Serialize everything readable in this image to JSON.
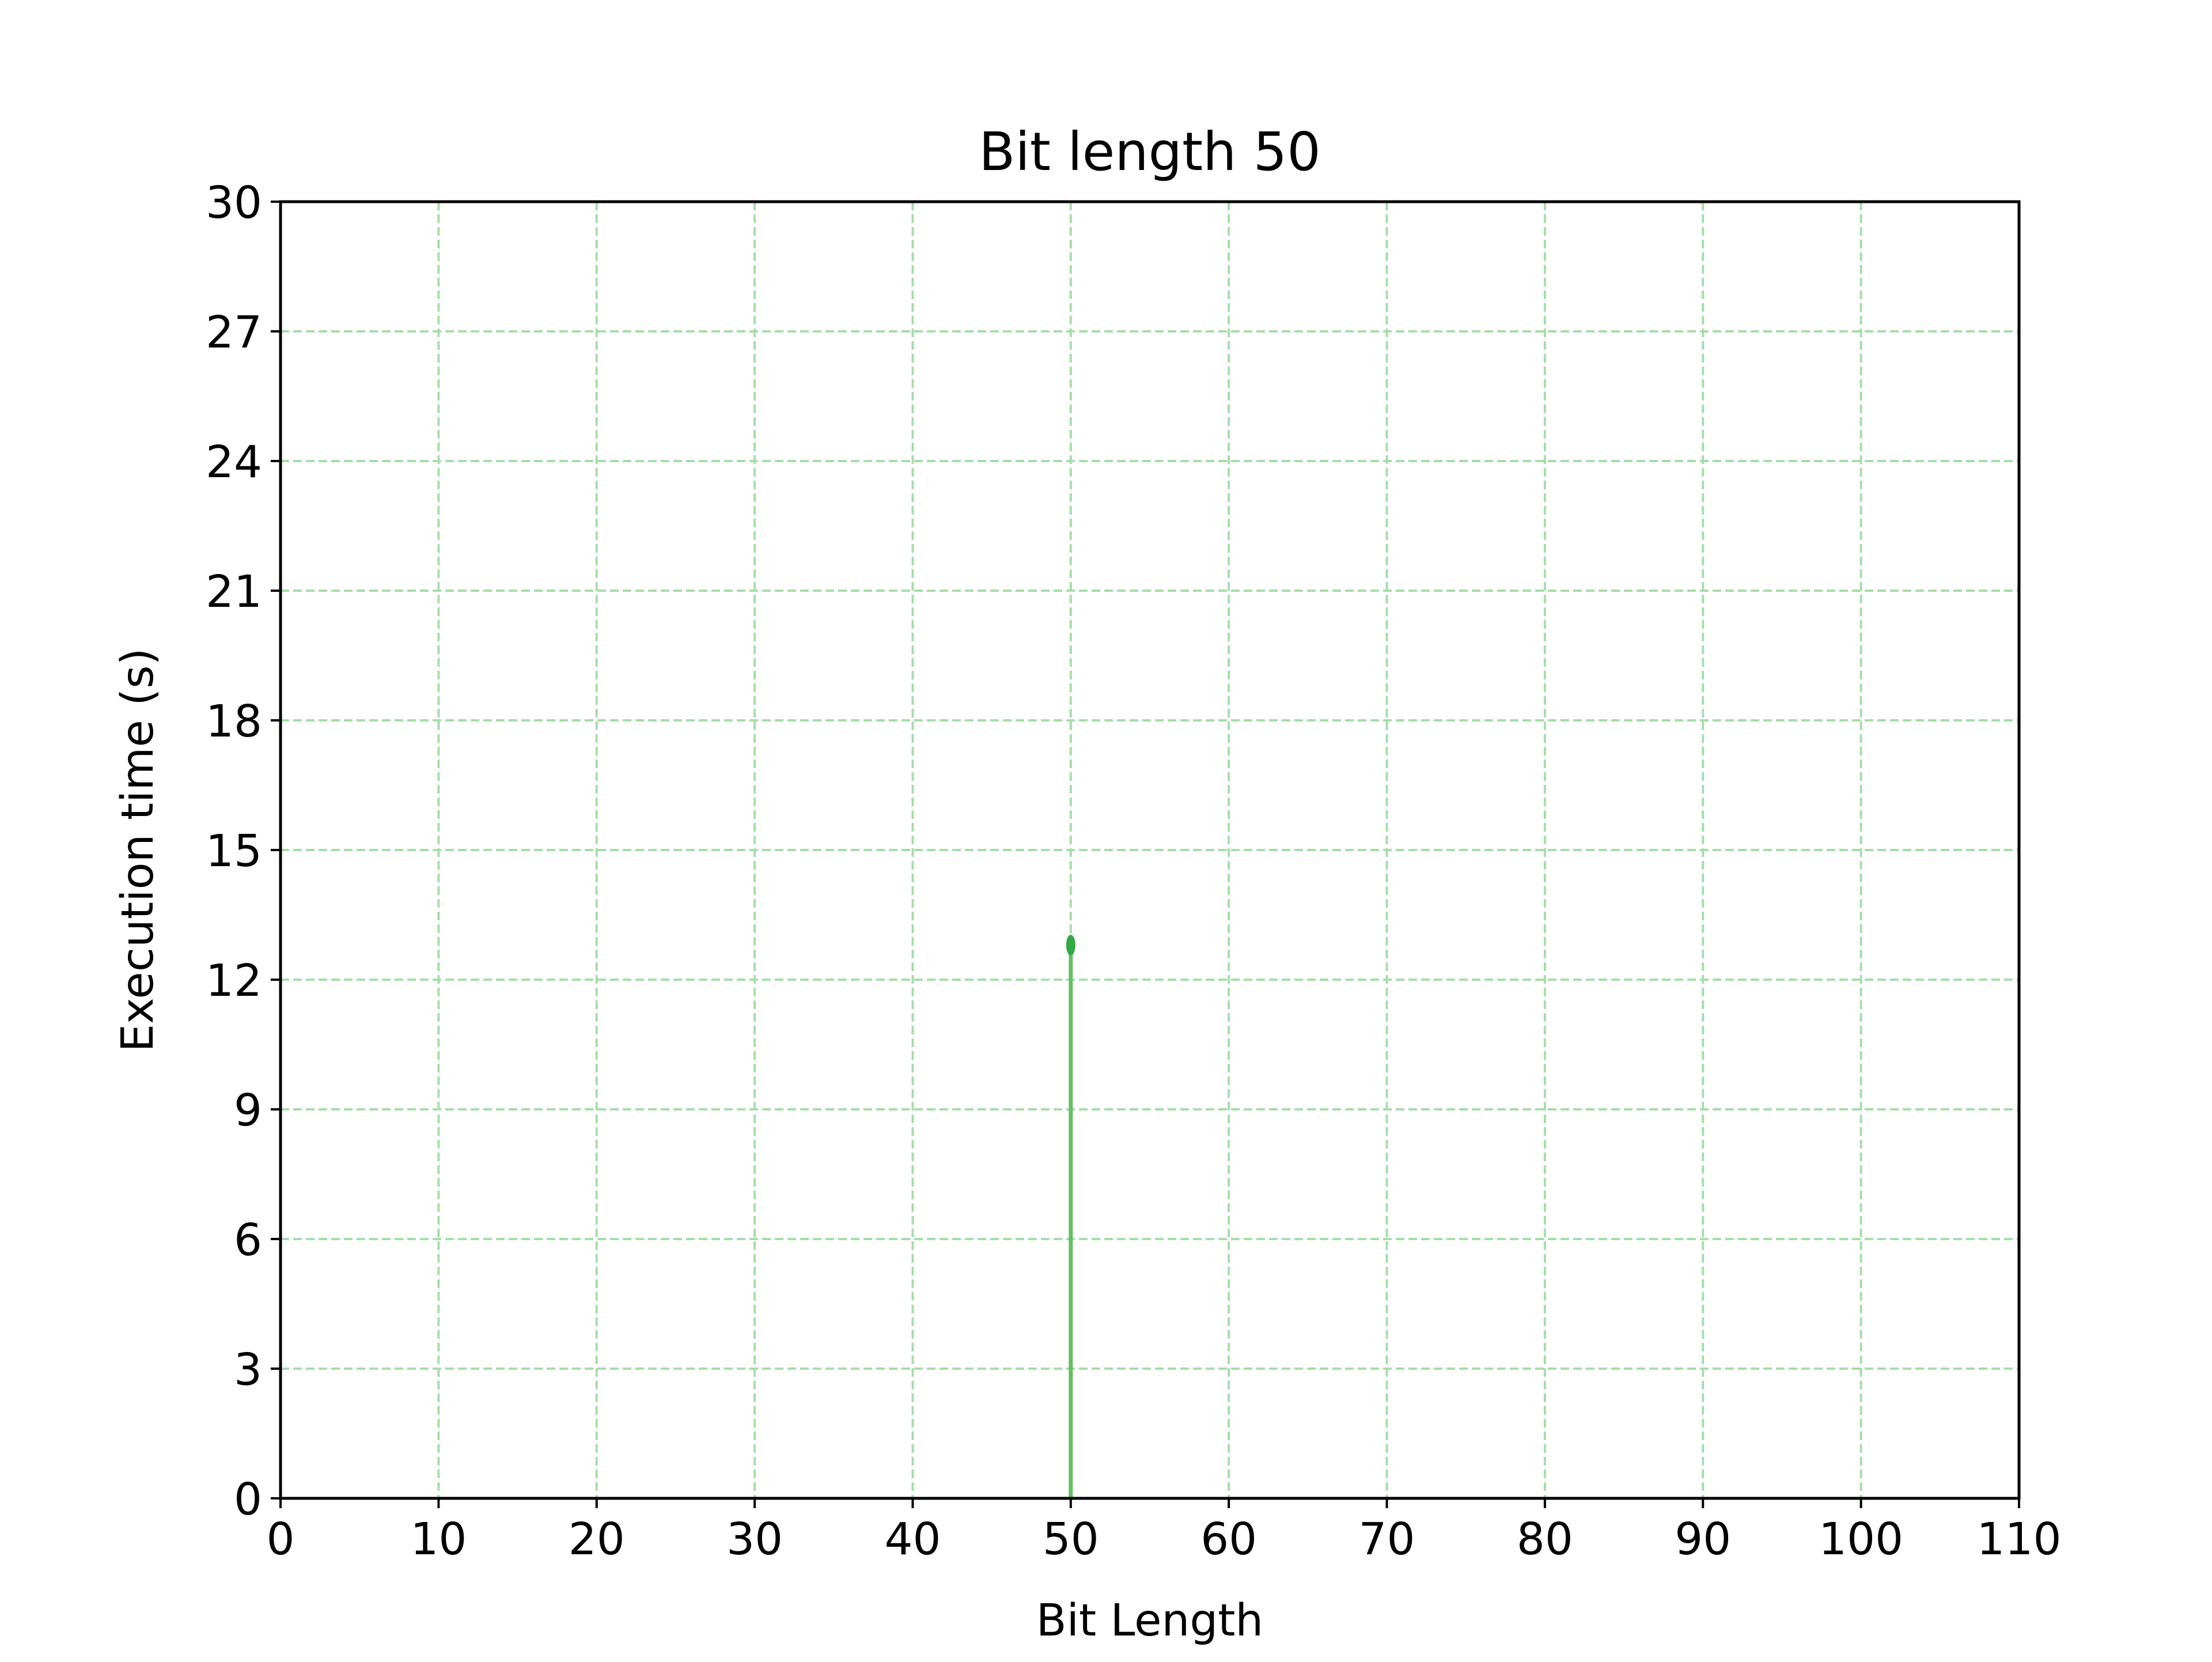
{
  "chart_data": {
    "type": "line",
    "title": "Bit length 50",
    "xlabel": "Bit Length",
    "ylabel": "Execution time (s)",
    "xlim": [
      0,
      110
    ],
    "ylim": [
      0,
      30
    ],
    "xticks": [
      0,
      10,
      20,
      30,
      40,
      50,
      60,
      70,
      80,
      90,
      100,
      110
    ],
    "yticks": [
      0,
      3,
      6,
      9,
      12,
      15,
      18,
      21,
      24,
      27,
      30
    ],
    "xtick_labels": [
      "0",
      "10",
      "20",
      "30",
      "40",
      "50",
      "60",
      "70",
      "80",
      "90",
      "100",
      "110"
    ],
    "ytick_labels": [
      "0",
      "3",
      "6",
      "9",
      "12",
      "15",
      "18",
      "21",
      "24",
      "27",
      "30"
    ],
    "grid": true,
    "grid_style": "dashed",
    "grid_color": "#a8dcab",
    "legend": "none",
    "series": [
      {
        "color": "#66bf66",
        "marker_color": "#33a844",
        "x": [
          50,
          50
        ],
        "y": [
          0,
          12.8
        ]
      }
    ]
  }
}
